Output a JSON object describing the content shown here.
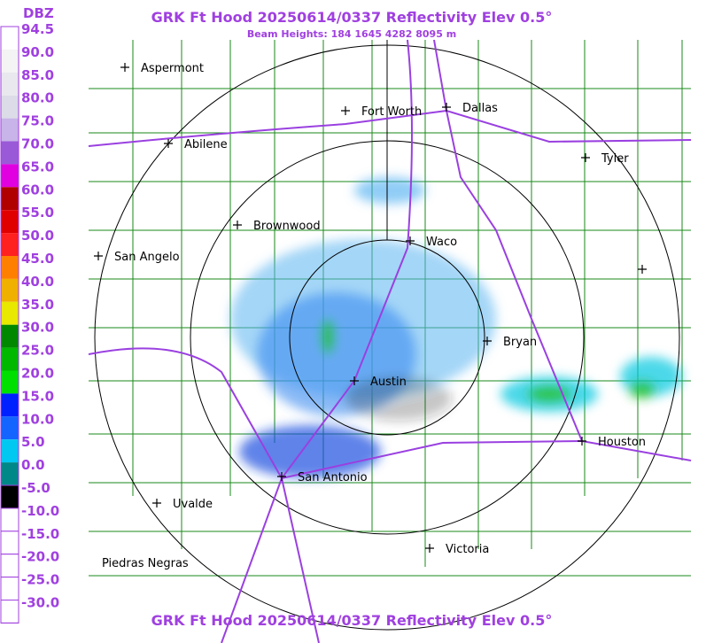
{
  "header": {
    "title": "GRK Ft Hood 20250614/0337 Reflectivity Elev 0.5°",
    "subtitle": "Beam Heights: 184 1645 4282 8095 m",
    "footer_title": "GRK Ft Hood 20250614/0337 Reflectivity Elev 0.5°"
  },
  "legend": {
    "unit": "DBZ",
    "labels": [
      "94.5",
      "90.0",
      "85.0",
      "80.0",
      "75.0",
      "70.0",
      "65.0",
      "60.0",
      "55.0",
      "50.0",
      "45.0",
      "40.0",
      "35.0",
      "30.0",
      "25.0",
      "20.0",
      "15.0",
      "10.0",
      "5.0",
      "0.0",
      "-5.0",
      "-10.0",
      "-15.0",
      "-20.0",
      "-25.0",
      "-30.0"
    ],
    "colors": [
      "#ffffff",
      "#f4f4f4",
      "#e8e8ee",
      "#dcdce8",
      "#c8b4e8",
      "#9a5ad8",
      "#e000e0",
      "#b00000",
      "#e00000",
      "#ff2020",
      "#ff8000",
      "#f0b000",
      "#e8e800",
      "#008800",
      "#00b800",
      "#00e000",
      "#0020ff",
      "#1464ff",
      "#00c8f0",
      "#008888",
      "#000000",
      "#ffffff",
      "#ffffff",
      "#ffffff",
      "#ffffff",
      "#ffffff"
    ]
  },
  "cities": [
    {
      "name": "Aspermont"
    },
    {
      "name": "Fort Worth"
    },
    {
      "name": "Dallas"
    },
    {
      "name": "Abilene"
    },
    {
      "name": "Tyler"
    },
    {
      "name": "Brownwood"
    },
    {
      "name": "Waco"
    },
    {
      "name": "San Angelo"
    },
    {
      "name": "Bryan"
    },
    {
      "name": "Austin"
    },
    {
      "name": "Houston"
    },
    {
      "name": "San Antonio"
    },
    {
      "name": "Uvalde"
    },
    {
      "name": "Victoria"
    },
    {
      "name": "Piedras Negras"
    }
  ]
}
